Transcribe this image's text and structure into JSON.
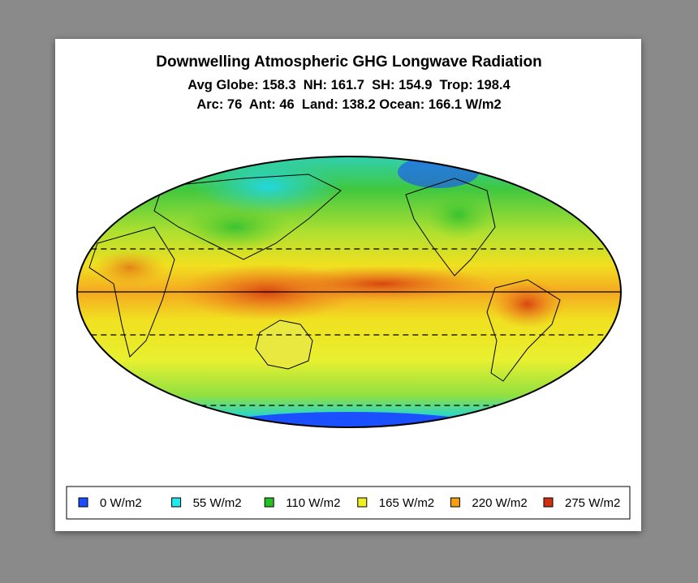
{
  "map": {
    "title": "Downwelling Atmospheric GHG Longwave Radiation",
    "stats": [
      "Avg Globe: 158.3  NH: 161.7  SH: 154.9  Trop: 198.4",
      "Arc: 76  Ant: 46  Land: 138.2 Ocean: 166.1 W/m2"
    ],
    "legend": [
      {
        "label": "0 W/m2",
        "color": "#1a4dff"
      },
      {
        "label": "55 W/m2",
        "color": "#22e8f0"
      },
      {
        "label": "110 W/m2",
        "color": "#22c022"
      },
      {
        "label": "165 W/m2",
        "color": "#f0f020"
      },
      {
        "label": "220 W/m2",
        "color": "#f5a010"
      },
      {
        "label": "275 W/m2",
        "color": "#d03010"
      }
    ]
  }
}
